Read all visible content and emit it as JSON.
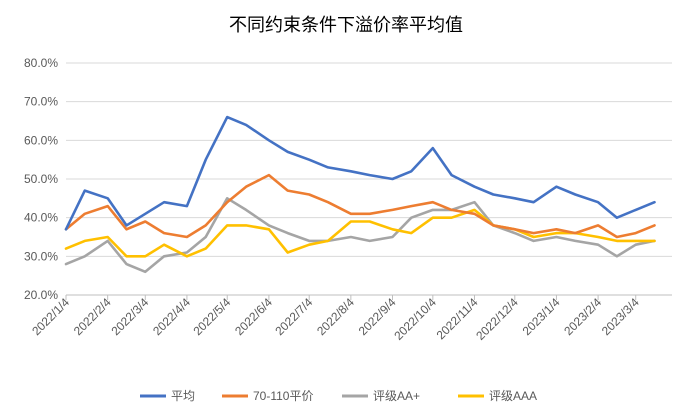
{
  "chart_data": {
    "type": "line",
    "title": "不同约束条件下溢价率平均值",
    "xlabel": "",
    "ylabel": "",
    "ylim": [
      20,
      80
    ],
    "y_ticks": [
      20,
      30,
      40,
      50,
      60,
      70,
      80
    ],
    "y_tick_labels": [
      "20.0%",
      "30.0%",
      "40.0%",
      "50.0%",
      "60.0%",
      "70.0%",
      "80.0%"
    ],
    "x_tick_labels": [
      "2022/1/4",
      "2022/2/4",
      "2022/3/4",
      "2022/4/4",
      "2022/5/4",
      "2022/6/4",
      "2022/7/4",
      "2022/8/4",
      "2022/9/4",
      "2022/10/4",
      "2022/11/4",
      "2022/12/4",
      "2023/1/4",
      "2023/2/4",
      "2023/3/4"
    ],
    "x": [
      "2022-01-04",
      "2022-01-18",
      "2022-02-04",
      "2022-02-18",
      "2022-03-04",
      "2022-03-18",
      "2022-04-04",
      "2022-04-18",
      "2022-05-04",
      "2022-05-18",
      "2022-06-04",
      "2022-06-18",
      "2022-07-04",
      "2022-07-18",
      "2022-08-04",
      "2022-08-18",
      "2022-09-04",
      "2022-09-18",
      "2022-10-04",
      "2022-10-18",
      "2022-11-04",
      "2022-11-18",
      "2022-12-04",
      "2022-12-18",
      "2023-01-04",
      "2023-01-18",
      "2023-02-04",
      "2023-02-18",
      "2023-03-04",
      "2023-03-18"
    ],
    "series": [
      {
        "name": "平均",
        "color": "#4472C4",
        "values": [
          37,
          47,
          45,
          38,
          41,
          44,
          43,
          55,
          66,
          64,
          60,
          57,
          55,
          53,
          52,
          51,
          50,
          52,
          58,
          51,
          48,
          46,
          45,
          44,
          48,
          46,
          44,
          40,
          42,
          44
        ]
      },
      {
        "name": "70-110平价",
        "color": "#ED7D31",
        "values": [
          37,
          41,
          43,
          37,
          39,
          36,
          35,
          38,
          44,
          48,
          51,
          47,
          46,
          44,
          41,
          41,
          42,
          43,
          44,
          42,
          41,
          38,
          37,
          36,
          37,
          36,
          38,
          35,
          36,
          38
        ]
      },
      {
        "name": "评级AA+",
        "color": "#A5A5A5",
        "values": [
          28,
          30,
          34,
          28,
          26,
          30,
          31,
          35,
          45,
          42,
          38,
          36,
          34,
          34,
          35,
          34,
          35,
          40,
          42,
          42,
          44,
          38,
          36,
          34,
          35,
          34,
          33,
          30,
          33,
          34
        ]
      },
      {
        "name": "评级AAA",
        "color": "#FFC000",
        "values": [
          32,
          34,
          35,
          30,
          30,
          33,
          30,
          32,
          38,
          38,
          37,
          31,
          33,
          34,
          39,
          39,
          37,
          36,
          40,
          40,
          42,
          38,
          37,
          35,
          36,
          36,
          35,
          34,
          34,
          34
        ]
      }
    ],
    "grid": "horizontal",
    "legend": "bottom"
  }
}
